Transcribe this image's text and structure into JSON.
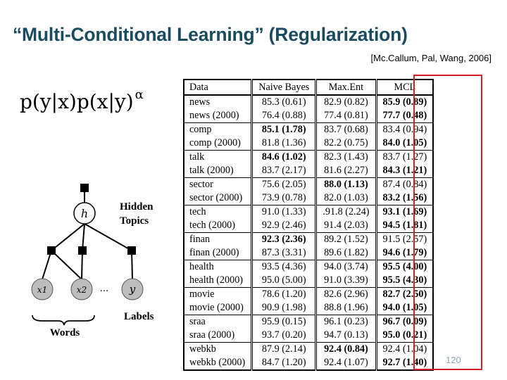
{
  "slide": {
    "title": "“Multi-Conditional Learning” (Regularization)",
    "citation": "[Mc.Callum, Pal, Wang, 2006]",
    "formula": {
      "main": "p(y|x)p(x|y)",
      "superscript": "α"
    },
    "page_number": "120"
  },
  "diagram": {
    "hidden_label_line1": "Hidden",
    "hidden_label_line2": "Topics",
    "hidden_node": "h",
    "word_nodes": [
      "x1",
      "x2"
    ],
    "ellipsis": "...",
    "label_node": "y",
    "words_label": "Words",
    "labels_label": "Labels"
  },
  "table": {
    "headers": [
      "Data",
      "Naive Bayes",
      "Max.Ent",
      "MCL"
    ],
    "rows": [
      {
        "data": "news",
        "nb": "85.3 (0.61)",
        "me": "82.9 (0.82)",
        "mcl": "85.9 (0.89)",
        "bold": [
          false,
          false,
          true
        ]
      },
      {
        "data": "news (2000)",
        "nb": "76.4 (0.88)",
        "me": "77.4 (0.81)",
        "mcl": "77.7 (0.48)",
        "bold": [
          false,
          false,
          true
        ]
      },
      {
        "data": "comp",
        "nb": "85.1 (1.78)",
        "me": "83.7 (0.68)",
        "mcl": "83.4 (0.94)",
        "bold": [
          true,
          false,
          false
        ]
      },
      {
        "data": "comp (2000)",
        "nb": "81.8 (1.36)",
        "me": "82.2 (0.75)",
        "mcl": "84.0 (1.05)",
        "bold": [
          false,
          false,
          true
        ]
      },
      {
        "data": "talk",
        "nb": "84.6 (1.02)",
        "me": "82.3 (1.43)",
        "mcl": "83.7 (1.27)",
        "bold": [
          true,
          false,
          false
        ]
      },
      {
        "data": "talk (2000)",
        "nb": "83.7 (2.17)",
        "me": "81.6 (2.27)",
        "mcl": "84.3 (1.21)",
        "bold": [
          false,
          false,
          true
        ]
      },
      {
        "data": "sector",
        "nb": "75.6 (2.05)",
        "me": "88.0 (1.13)",
        "mcl": "87.4 (0.84)",
        "bold": [
          false,
          true,
          false
        ]
      },
      {
        "data": "sector (2000)",
        "nb": "73.9 (0.78)",
        "me": "82.0 (1.03)",
        "mcl": "83.2 (1.56)",
        "bold": [
          false,
          false,
          true
        ]
      },
      {
        "data": "tech",
        "nb": "91.0 (1.33)",
        "me": ".91.8 (2.24)",
        "mcl": "93.1 (1.69)",
        "bold": [
          false,
          false,
          true
        ]
      },
      {
        "data": "tech (2000)",
        "nb": "92.9 (2.46)",
        "me": "91.4 (2.03)",
        "mcl": "94.5 (1.81)",
        "bold": [
          false,
          false,
          true
        ]
      },
      {
        "data": "finan",
        "nb": "92.3 (2.36)",
        "me": "89.2 (1.52)",
        "mcl": "91.5 (2.57)",
        "bold": [
          true,
          false,
          false
        ]
      },
      {
        "data": "finan (2000)",
        "nb": "87.3 (3.31)",
        "me": "89.6 (1.82)",
        "mcl": "94.6 (1.79)",
        "bold": [
          false,
          false,
          true
        ]
      },
      {
        "data": "health",
        "nb": "93.5 (4.36)",
        "me": "94.0 (3.74)",
        "mcl": "95.5 (4.00)",
        "bold": [
          false,
          false,
          true
        ]
      },
      {
        "data": "health (2000)",
        "nb": "95.0 (5.00)",
        "me": "91.0 (3.39)",
        "mcl": "95.5 (4.30)",
        "bold": [
          false,
          false,
          true
        ]
      },
      {
        "data": "movie",
        "nb": "78.6 (1.20)",
        "me": "82.6 (2.96)",
        "mcl": "82.7 (2.50)",
        "bold": [
          false,
          false,
          true
        ]
      },
      {
        "data": "movie (2000)",
        "nb": "90.9 (1.98)",
        "me": "88.8 (1.96)",
        "mcl": "94.0 (1.05)",
        "bold": [
          false,
          false,
          true
        ]
      },
      {
        "data": "sraa",
        "nb": "95.9 (0.15)",
        "me": "96.1 (0.23)",
        "mcl": "96.7 (0.09)",
        "bold": [
          false,
          false,
          true
        ]
      },
      {
        "data": "sraa (2000)",
        "nb": "93.7 (0.20)",
        "me": "94.7 (0.13)",
        "mcl": "95.0 (0.21)",
        "bold": [
          false,
          false,
          true
        ]
      },
      {
        "data": "webkb",
        "nb": "87.9 (2.14)",
        "me": "92.4 (0.84)",
        "mcl": "92.4 (1.04)",
        "bold": [
          false,
          true,
          false
        ]
      },
      {
        "data": "webkb (2000)",
        "nb": "84.7 (1.20)",
        "me": "92.4 (1.07)",
        "mcl": "92.7 (1.40)",
        "bold": [
          false,
          false,
          true
        ]
      }
    ]
  },
  "colors": {
    "title": "#1b4b5e",
    "highlight": "#d81f26",
    "page_number": "#8aa6b3"
  }
}
